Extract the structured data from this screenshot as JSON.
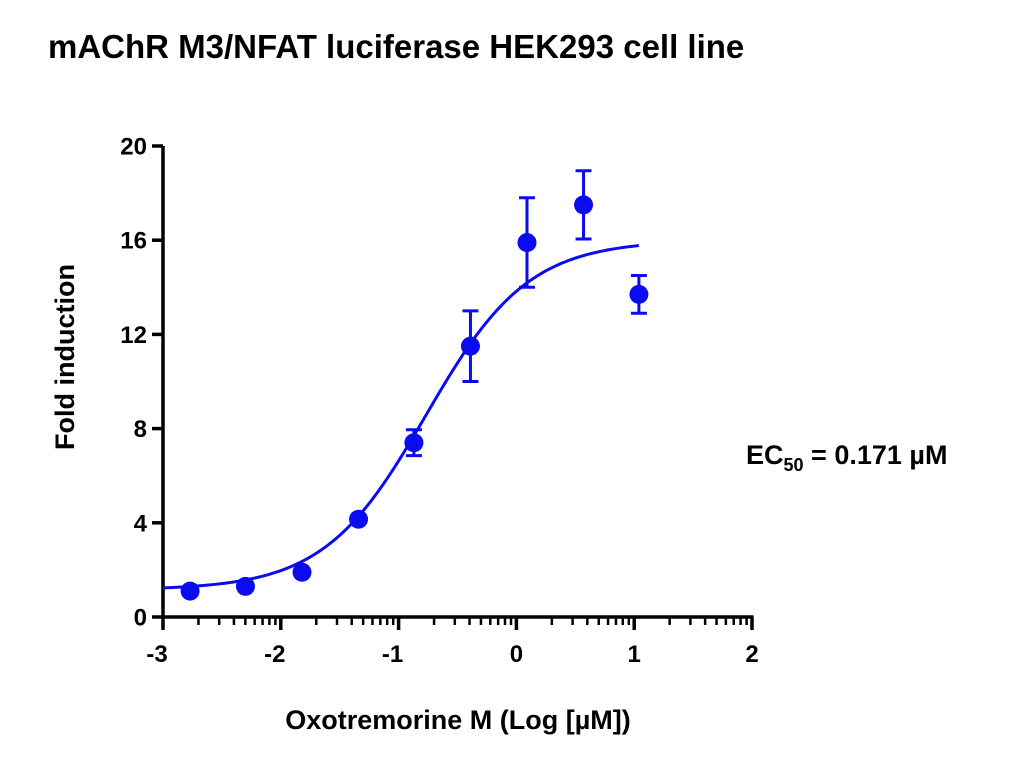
{
  "chart_data": {
    "type": "scatter",
    "title": "mAChR M3/NFAT luciferase HEK293 cell line",
    "xlabel": "Oxotremorine M (Log [µM])",
    "ylabel": "Fold induction",
    "xlim": [
      -3,
      2
    ],
    "ylim": [
      0,
      20
    ],
    "xticks": [
      "-3",
      "-2",
      "-1",
      "0",
      "1",
      "2"
    ],
    "yticks": [
      "0",
      "4",
      "8",
      "12",
      "16",
      "20"
    ],
    "grid": false,
    "color": "#0b0bf0",
    "series": [
      {
        "x": [
          -2.77,
          -2.3,
          -1.82,
          -1.34,
          -0.87,
          -0.39,
          0.09,
          0.57,
          1.04
        ],
        "y": [
          1.1,
          1.3,
          1.9,
          4.15,
          7.4,
          11.5,
          15.9,
          17.5,
          13.7
        ],
        "error": [
          0.0,
          0.0,
          0.0,
          0.0,
          0.55,
          1.5,
          1.9,
          1.45,
          0.8
        ]
      }
    ],
    "fit": {
      "model": "four-parameter logistic",
      "bottom": 1.15,
      "top": 16.0,
      "logEC50": -0.767,
      "hill": 1.0,
      "x_range": [
        -3,
        1.04
      ]
    },
    "annotation": {
      "main": "EC",
      "sub": "50",
      "rest": " = 0.171 µM"
    }
  }
}
